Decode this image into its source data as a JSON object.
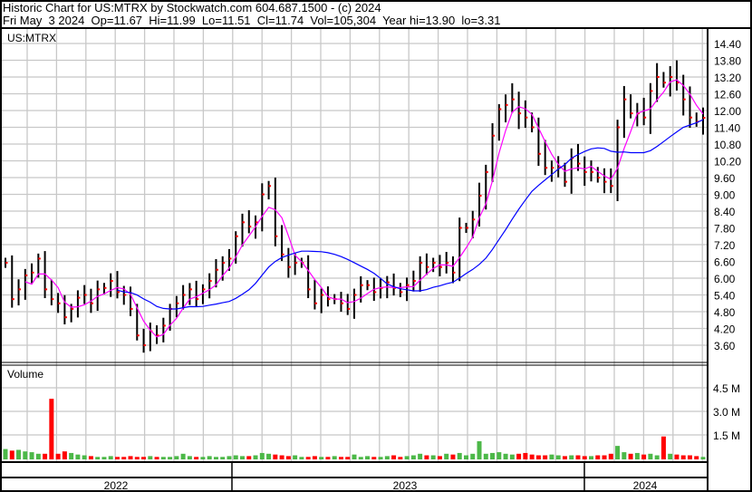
{
  "header": {
    "line1": "Historic Chart for US:MTRX by Stockwatch.com 604.687.1500 - (c) 2024",
    "line2": "Fri May  3 2024  Op=11.67  Hi=11.99  Lo=11.51  Cl=11.74  Vol=105,304  Year hi=13.90  lo=3.31"
  },
  "chart_data": {
    "type": "line",
    "symbol": "US:MTRX",
    "frequency": "weekly",
    "start": "2022-05-06",
    "end": "2024-05-03",
    "price_ticks": [
      "14.40",
      "13.80",
      "13.20",
      "12.60",
      "12.00",
      "11.40",
      "10.80",
      "10.20",
      "9.60",
      "9.00",
      "8.40",
      "7.80",
      "7.20",
      "6.60",
      "6.00",
      "5.40",
      "4.80",
      "4.20",
      "3.60"
    ],
    "ylim": [
      3.6,
      14.4
    ],
    "volume_label": "Volume",
    "volume_ticks": [
      "4.5 M",
      "3.0 M",
      "1.5 M"
    ],
    "volume_ylim_millions": [
      0,
      4.5
    ],
    "years": [
      "2022",
      "2023",
      "2024"
    ],
    "grid": true,
    "colors": {
      "bars": "#000000",
      "close_tick": "#ff0000",
      "ma_short": "#ff00ff",
      "ma_long": "#0000ff",
      "vol_up": "#4cb848",
      "vol_down": "#ff0000",
      "grid": "#c8c8c8"
    },
    "closes": [
      6.55,
      5.25,
      5.6,
      6.1,
      6.2,
      6.7,
      5.6,
      5.25,
      5.1,
      4.6,
      4.9,
      5.3,
      5.4,
      5.1,
      5.6,
      5.65,
      5.9,
      5.5,
      5.4,
      4.9,
      3.95,
      3.6,
      4.1,
      3.95,
      4.3,
      4.9,
      5.1,
      5.4,
      5.6,
      5.25,
      5.6,
      5.9,
      6.3,
      6.55,
      6.7,
      7.5,
      8.0,
      7.85,
      8.0,
      9.0,
      9.3,
      7.5,
      6.85,
      6.4,
      6.55,
      6.55,
      5.6,
      5.1,
      5.4,
      5.25,
      5.25,
      5.1,
      4.9,
      5.4,
      5.75,
      5.75,
      5.5,
      5.65,
      5.85,
      5.65,
      5.5,
      5.75,
      5.9,
      6.55,
      6.4,
      6.55,
      6.4,
      6.55,
      6.2,
      7.8,
      7.8,
      8.1,
      8.95,
      9.8,
      11.1,
      12.05,
      12.2,
      12.4,
      11.9,
      11.75,
      11.4,
      10.45,
      9.95,
      9.95,
      9.95,
      9.45,
      10.3,
      10.1,
      9.8,
      9.8,
      9.6,
      9.45,
      9.3,
      11.4,
      12.4,
      11.9,
      11.9,
      11.75,
      12.7,
      13.2,
      13.0,
      13.2,
      13.0,
      12.4,
      11.75,
      11.6,
      11.74
    ],
    "volumes_millions": [
      0.6,
      0.5,
      0.55,
      0.45,
      0.4,
      0.3,
      0.3,
      3.8,
      0.3,
      0.45,
      0.35,
      0.25,
      0.2,
      0.15,
      0.1,
      0.1,
      0.15,
      0.1,
      0.1,
      0.15,
      0.1,
      0.1,
      0.15,
      0.1,
      0.1,
      0.1,
      0.15,
      0.3,
      0.15,
      0.1,
      0.1,
      0.15,
      0.1,
      0.1,
      0.15,
      0.2,
      0.15,
      0.15,
      0.2,
      0.35,
      0.3,
      0.25,
      0.2,
      0.15,
      0.2,
      0.1,
      0.1,
      0.15,
      0.1,
      0.1,
      0.15,
      0.1,
      0.1,
      0.25,
      0.1,
      0.15,
      0.1,
      0.1,
      0.15,
      0.2,
      0.1,
      0.15,
      0.2,
      0.3,
      0.2,
      0.2,
      0.15,
      0.3,
      0.25,
      0.35,
      0.2,
      0.3,
      1.1,
      0.3,
      0.35,
      0.4,
      0.3,
      0.25,
      0.3,
      0.35,
      0.25,
      0.2,
      0.2,
      0.25,
      0.2,
      0.15,
      0.2,
      0.2,
      0.15,
      0.15,
      0.2,
      0.2,
      0.3,
      0.8,
      0.4,
      0.3,
      0.35,
      0.25,
      0.3,
      0.2,
      1.4,
      0.3,
      0.25,
      0.2,
      0.2,
      0.15,
      0.1
    ]
  }
}
